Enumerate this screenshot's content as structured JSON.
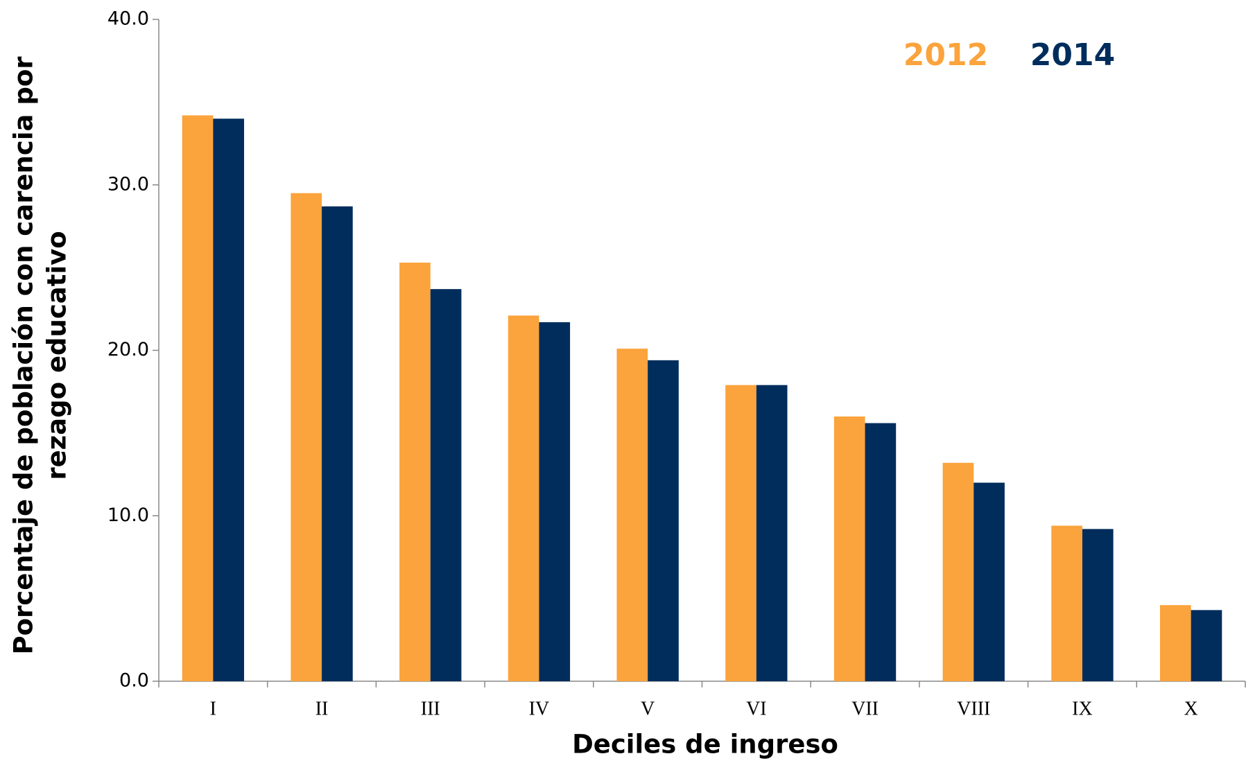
{
  "chart_data": {
    "type": "bar",
    "x_label": "Deciles de ingreso",
    "y_label": [
      "Porcentaje de población con carencia por",
      "rezago educativo"
    ],
    "categories": [
      "I",
      "II",
      "III",
      "IV",
      "V",
      "VI",
      "VII",
      "VIII",
      "IX",
      "X"
    ],
    "series": [
      {
        "name": "2012",
        "color": "#fba33c",
        "values": [
          34.2,
          29.5,
          25.3,
          22.1,
          20.1,
          17.9,
          16.0,
          13.2,
          9.4,
          4.6
        ]
      },
      {
        "name": "2014",
        "color": "#002d5c",
        "values": [
          34.0,
          28.7,
          23.7,
          21.7,
          19.4,
          17.9,
          15.6,
          12.0,
          9.2,
          4.3
        ]
      }
    ],
    "ylim": [
      0,
      40
    ],
    "yticks": [
      {
        "value": 0,
        "label": "0.0"
      },
      {
        "value": 10,
        "label": "10.0"
      },
      {
        "value": 20,
        "label": "20.0"
      },
      {
        "value": 30,
        "label": "30.0"
      },
      {
        "value": 40,
        "label": "40.0"
      }
    ],
    "grid": false,
    "legend": "top-right"
  }
}
